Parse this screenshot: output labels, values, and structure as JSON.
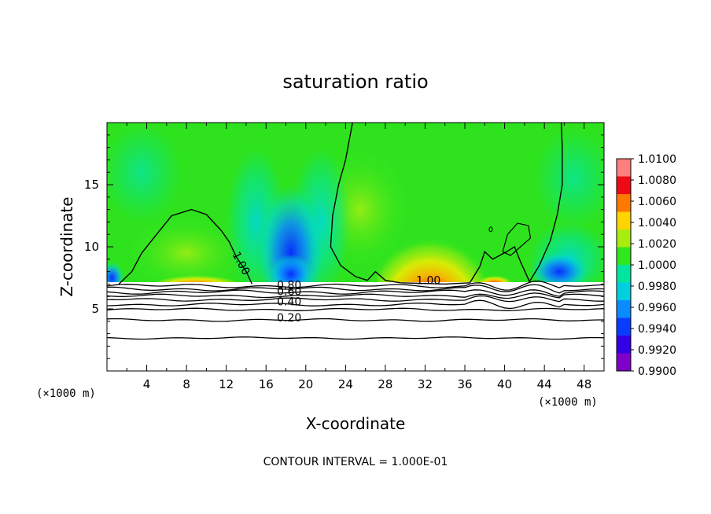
{
  "chart_data": {
    "type": "heatmap",
    "title": "saturation ratio",
    "xlabel": "X-coordinate",
    "ylabel": "Z-coordinate",
    "x_unit_left": "(×1000 m)",
    "x_unit_right": "(×1000 m)",
    "xlim": [
      0,
      50
    ],
    "ylim": [
      0,
      20
    ],
    "x_ticks": [
      4,
      8,
      12,
      16,
      20,
      24,
      28,
      32,
      36,
      40,
      44,
      48
    ],
    "y_ticks": [
      5,
      10,
      15
    ],
    "colorbar": {
      "levels": [
        "0.9900",
        "0.9920",
        "0.9940",
        "0.9960",
        "0.9980",
        "1.0000",
        "1.0020",
        "1.0040",
        "1.0060",
        "1.0080",
        "1.0100"
      ],
      "colors": [
        "#7f00c8",
        "#3200e6",
        "#0a3cff",
        "#0a8cff",
        "#00cfe0",
        "#00e6a0",
        "#30e61e",
        "#a8ec10",
        "#ffd400",
        "#ff7800",
        "#ee0a14",
        "#ff7f7f"
      ]
    },
    "contour_labels": [
      {
        "text": "1.00",
        "x": 12.6,
        "z": 9.4,
        "rotate": 62
      },
      {
        "text": "1.00",
        "x": 31.1,
        "z": 7.0,
        "rotate": 0
      },
      {
        "text": "0.80",
        "x": 17.1,
        "z": 6.6,
        "rotate": 0
      },
      {
        "text": "0.60",
        "x": 17.1,
        "z": 6.1,
        "rotate": 0
      },
      {
        "text": "0.40",
        "x": 17.1,
        "z": 5.3,
        "rotate": 0
      },
      {
        "text": "0.20",
        "x": 17.1,
        "z": 4.0,
        "rotate": 0
      }
    ],
    "surface_contours": [
      {
        "level": 0.9,
        "z": 6.85,
        "amp": 0.15
      },
      {
        "level": 0.8,
        "z": 6.6,
        "amp": 0.15
      },
      {
        "level": 0.7,
        "z": 6.35,
        "amp": 0.15
      },
      {
        "level": 0.6,
        "z": 6.05,
        "amp": 0.12
      },
      {
        "level": 0.5,
        "z": 5.75,
        "amp": 0.12
      },
      {
        "level": 0.4,
        "z": 5.35,
        "amp": 0.12
      },
      {
        "level": 0.3,
        "z": 4.95,
        "amp": 0.1
      },
      {
        "level": 0.2,
        "z": 4.1,
        "amp": 0.1
      },
      {
        "level": 0.1,
        "z": 2.65,
        "amp": 0.08
      }
    ],
    "footer": "CONTOUR INTERVAL = 1.000E-01"
  }
}
